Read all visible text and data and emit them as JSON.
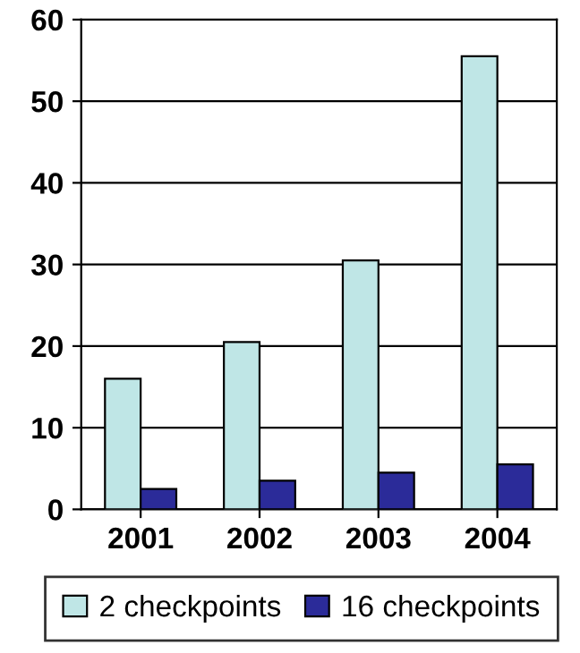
{
  "chart_data": {
    "type": "bar",
    "categories": [
      "2001",
      "2002",
      "2003",
      "2004"
    ],
    "series": [
      {
        "name": "2 checkpoints",
        "color": "#bfe6e6",
        "values": [
          16,
          20.5,
          30.5,
          55.5
        ]
      },
      {
        "name": "16 checkpoints",
        "color": "#2b2b99",
        "values": [
          2.5,
          3.5,
          4.5,
          5.5
        ]
      }
    ],
    "ylim": [
      0,
      60
    ],
    "yticks": [
      0,
      10,
      20,
      30,
      40,
      50,
      60
    ],
    "grid": "y",
    "legend": "bottom"
  }
}
